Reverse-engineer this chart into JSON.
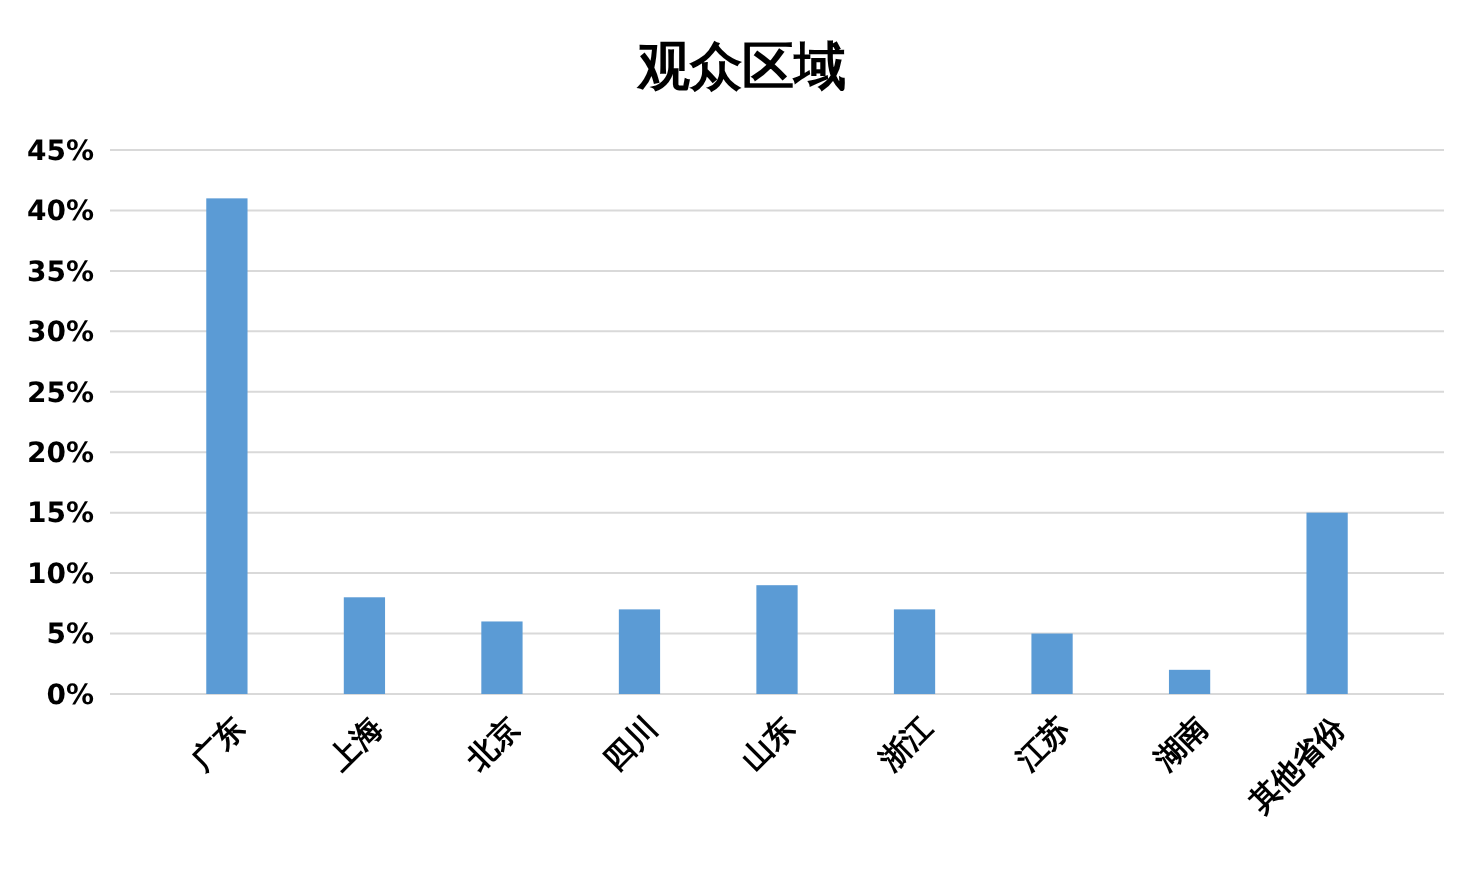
{
  "chart_data": {
    "type": "bar",
    "title": "观众区域",
    "categories": [
      "广东",
      "上海",
      "北京",
      "四川",
      "山东",
      "浙江",
      "江苏",
      "湖南",
      "其他省份"
    ],
    "values": [
      41,
      8,
      6,
      7,
      9,
      7,
      5,
      2,
      15
    ],
    "color": "#5b9bd5",
    "ylim": [
      0,
      45
    ],
    "yticks": [
      {
        "value": 0,
        "label": "0%"
      },
      {
        "value": 5,
        "label": "5%"
      },
      {
        "value": 10,
        "label": "10%"
      },
      {
        "value": 15,
        "label": "15%"
      },
      {
        "value": 20,
        "label": "20%"
      },
      {
        "value": 25,
        "label": "25%"
      },
      {
        "value": 30,
        "label": "30%"
      },
      {
        "value": 35,
        "label": "35%"
      },
      {
        "value": 40,
        "label": "40%"
      },
      {
        "value": 45,
        "label": "45%"
      }
    ],
    "grid": "y"
  }
}
